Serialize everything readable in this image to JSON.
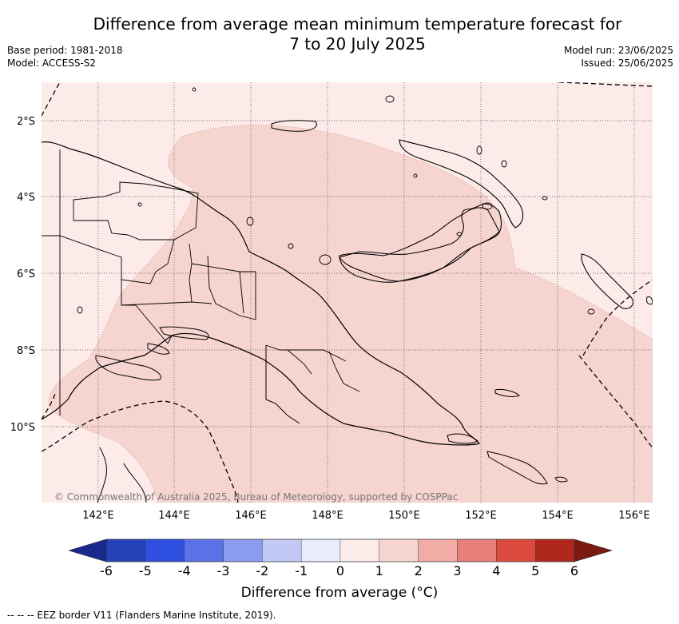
{
  "header": {
    "title_line1": "Difference from average mean minimum temperature forecast for",
    "title_line2": "7 to 20 July 2025",
    "base_period": "Base period: 1981-2018",
    "model": "Model: ACCESS-S2",
    "model_run": "Model run: 23/06/2025",
    "issued": "Issued: 25/06/2025"
  },
  "map": {
    "lat_labels": [
      "2°S",
      "4°S",
      "6°S",
      "8°S",
      "10°S"
    ],
    "lon_labels": [
      "142°E",
      "144°E",
      "146°E",
      "148°E",
      "150°E",
      "152°E",
      "154°E",
      "156°E"
    ],
    "copyright": "© Commonwealth of Australia 2025, Bureau of Meteorology, supported by COSPPac",
    "colors": {
      "ocean_light": "#fcebe8",
      "anomaly_1_2": "#f6d4d0",
      "coast": "#000000"
    }
  },
  "colorbar": {
    "ticks": [
      "-6",
      "-5",
      "-4",
      "-3",
      "-2",
      "-1",
      "0",
      "1",
      "2",
      "3",
      "4",
      "5",
      "6"
    ],
    "colors": [
      "#1a2a8c",
      "#2641b8",
      "#2f4fe0",
      "#5a72e8",
      "#8a9cee",
      "#c2c9f5",
      "#e8ecfb",
      "#fcebe8",
      "#f6d4d0",
      "#f0aca5",
      "#e8807a",
      "#dc4a3e",
      "#b0271e",
      "#7a1a12"
    ],
    "label": "Difference from average (°C)"
  },
  "footer": {
    "legend": "--  --  -- EEZ border V11 (Flanders Marine Institute, 2019)."
  }
}
